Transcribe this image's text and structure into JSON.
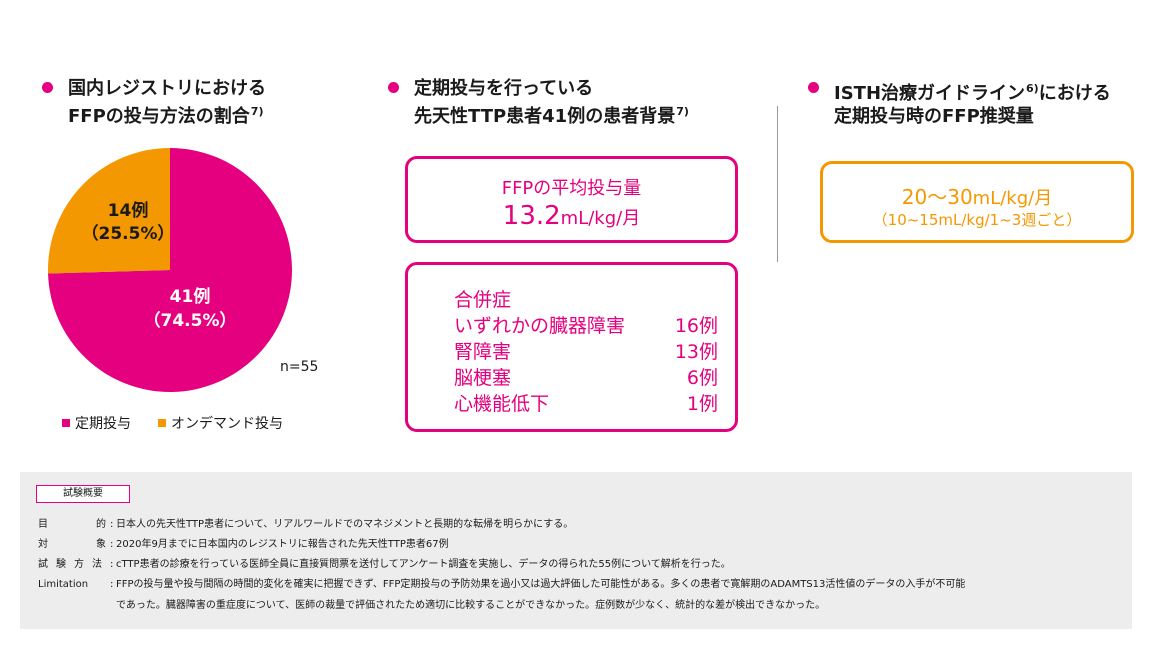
{
  "headings": {
    "left": {
      "line1": "国内レジストリにおける",
      "line2": "FFPの投与方法の割合",
      "sup": "7)"
    },
    "middle": {
      "line1": "定期投与を行っている",
      "line2": "先天性TTP患者41例の患者背景",
      "sup": "7)"
    },
    "right": {
      "line1a": "ISTH治療ガイドライン",
      "line1sup": "6)",
      "line1b": "における",
      "line2": "定期投与時のFFP推奨量"
    }
  },
  "chart_data": {
    "type": "pie",
    "total_note": "n=55",
    "slices": [
      {
        "name": "定期投与",
        "count": 41,
        "count_label": "41例",
        "percent": 74.5,
        "percent_label": "（74.5%）",
        "color": "#e4007f"
      },
      {
        "name": "オンデマンド投与",
        "count": 14,
        "count_label": "14例",
        "percent": 25.5,
        "percent_label": "（25.5%）",
        "color": "#f39800"
      }
    ],
    "legend": "bottom"
  },
  "avg_dose": {
    "label": "FFPの平均投与量",
    "value": "13.2",
    "unit": "mL/kg/月"
  },
  "comorbidities": {
    "title": "合併症",
    "items": [
      {
        "name": "いずれかの臓器障害",
        "count": "16例"
      },
      {
        "name": "腎障害",
        "count": "13例"
      },
      {
        "name": "脳梗塞",
        "count": "6例"
      },
      {
        "name": "心機能低下",
        "count": "1例"
      }
    ]
  },
  "recommended": {
    "value": "20〜30",
    "unit": "mL/kg/月",
    "note": "（10~15mL/kg/1~3週ごと）"
  },
  "summary": {
    "title": "試験概要",
    "rows": [
      {
        "label": "目的",
        "text": "日本人の先天性TTP患者について、リアルワールドでのマネジメントと長期的な転帰を明らかにする。"
      },
      {
        "label": "対象",
        "text": "2020年9月までに日本国内のレジストリに報告された先天性TTP患者67例"
      },
      {
        "label": "試験方法",
        "text": "cTTP患者の診療を行っている医師全員に直接質問票を送付してアンケート調査を実施し、データの得られた55例について解析を行った。"
      },
      {
        "label": "Limitation",
        "text": "FFPの投与量や投与間隔の時間的変化を確実に把握できず、FFP定期投与の予防効果を過小又は過大評価した可能性がある。多くの患者で寛解期のADAMTS13活性値のデータの入手が不可能",
        "text2": "であった。臓器障害の重症度について、医師の裁量で評価されたため適切に比較することができなかった。症例数が少なく、統計的な差が検出できなかった。"
      }
    ]
  }
}
